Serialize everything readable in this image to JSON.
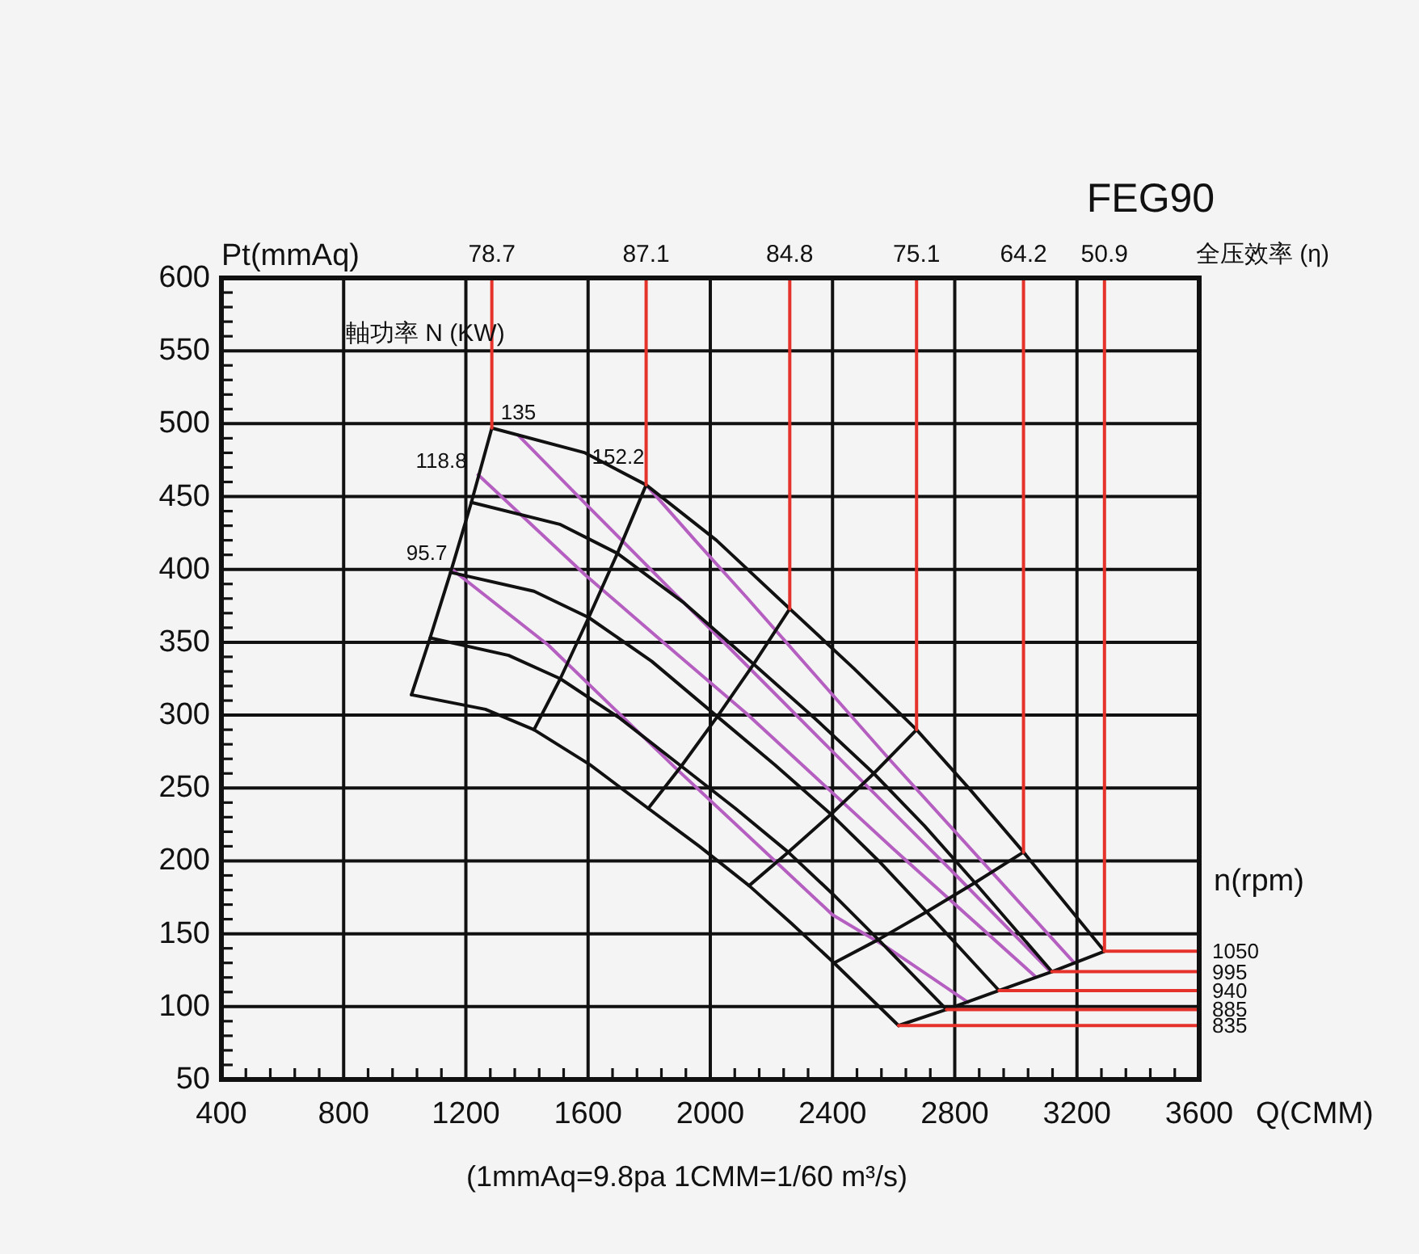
{
  "chart_data": {
    "type": "line",
    "title": "FEG90",
    "xlabel": "Q(CMM)",
    "ylabel": "Pt(mmAq)",
    "xlim": [
      400,
      3600
    ],
    "xticks": [
      400,
      {
        "value": 480,
        "label": null
      },
      {
        "value": 560,
        "label": null
      },
      {
        "value": 640,
        "label": null
      },
      {
        "value": 720,
        "label": null
      },
      800,
      {
        "value": 880,
        "label": null
      },
      {
        "value": 960,
        "label": null
      },
      {
        "value": 1040,
        "label": null
      },
      {
        "value": 1120,
        "label": null
      },
      1200,
      {
        "value": 1280,
        "label": null
      },
      {
        "value": 1360,
        "label": null
      },
      {
        "value": 1440,
        "label": null
      },
      {
        "value": 1520,
        "label": null
      },
      1600,
      {
        "value": 1680,
        "label": null
      },
      {
        "value": 1760,
        "label": null
      },
      {
        "value": 1840,
        "label": null
      },
      {
        "value": 1920,
        "label": null
      },
      2000,
      {
        "value": 2080,
        "label": null
      },
      {
        "value": 2160,
        "label": null
      },
      {
        "value": 2240,
        "label": null
      },
      {
        "value": 2320,
        "label": null
      },
      2400,
      {
        "value": 2480,
        "label": null
      },
      {
        "value": 2560,
        "label": null
      },
      {
        "value": 2640,
        "label": null
      },
      {
        "value": 2720,
        "label": null
      },
      2800,
      {
        "value": 2880,
        "label": null
      },
      {
        "value": 2960,
        "label": null
      },
      {
        "value": 3040,
        "label": null
      },
      {
        "value": 3120,
        "label": null
      },
      3200,
      {
        "value": 3280,
        "label": null
      },
      {
        "value": 3360,
        "label": null
      },
      {
        "value": 3440,
        "label": null
      },
      {
        "value": 3520,
        "label": null
      },
      3600
    ],
    "ylim": [
      50,
      600
    ],
    "yticks": [
      50,
      {
        "value": 60,
        "label": null
      },
      {
        "value": 70,
        "label": null
      },
      {
        "value": 80,
        "label": null
      },
      {
        "value": 90,
        "label": null
      },
      100,
      {
        "value": 110,
        "label": null
      },
      {
        "value": 120,
        "label": null
      },
      {
        "value": 130,
        "label": null
      },
      {
        "value": 140,
        "label": null
      },
      150,
      {
        "value": 160,
        "label": null
      },
      {
        "value": 170,
        "label": null
      },
      {
        "value": 180,
        "label": null
      },
      {
        "value": 190,
        "label": null
      },
      200,
      {
        "value": 210,
        "label": null
      },
      {
        "value": 220,
        "label": null
      },
      {
        "value": 230,
        "label": null
      },
      {
        "value": 240,
        "label": null
      },
      250,
      {
        "value": 260,
        "label": null
      },
      {
        "value": 270,
        "label": null
      },
      {
        "value": 280,
        "label": null
      },
      {
        "value": 290,
        "label": null
      },
      300,
      {
        "value": 310,
        "label": null
      },
      {
        "value": 320,
        "label": null
      },
      {
        "value": 330,
        "label": null
      },
      {
        "value": 340,
        "label": null
      },
      350,
      {
        "value": 360,
        "label": null
      },
      {
        "value": 370,
        "label": null
      },
      {
        "value": 380,
        "label": null
      },
      {
        "value": 390,
        "label": null
      },
      400,
      {
        "value": 410,
        "label": null
      },
      {
        "value": 420,
        "label": null
      },
      {
        "value": 430,
        "label": null
      },
      {
        "value": 440,
        "label": null
      },
      450,
      {
        "value": 460,
        "label": null
      },
      {
        "value": 470,
        "label": null
      },
      {
        "value": 480,
        "label": null
      },
      {
        "value": 490,
        "label": null
      },
      500,
      {
        "value": 510,
        "label": null
      },
      {
        "value": 520,
        "label": null
      },
      {
        "value": 530,
        "label": null
      },
      {
        "value": 540,
        "label": null
      },
      550,
      {
        "value": 560,
        "label": null
      },
      {
        "value": 570,
        "label": null
      },
      {
        "value": 580,
        "label": null
      },
      {
        "value": 590,
        "label": null
      },
      600
    ],
    "grid": true,
    "annotations": [
      "軸功率 N (KW)",
      {
        "text": "135",
        "x": 1372,
        "y": 492
      },
      {
        "text": "152.2",
        "x": 1790,
        "y": 458
      },
      {
        "text": "118.8",
        "x": 1240,
        "y": 465
      },
      {
        "text": "95.7",
        "x": 1155,
        "y": 400
      },
      {
        "text": "78.7",
        "x": 1285,
        "y": 600
      },
      {
        "text": "87.1",
        "x": 1790,
        "y": 600
      },
      {
        "text": "84.8",
        "x": 2260,
        "y": 600
      },
      {
        "text": "75.1",
        "x": 2675,
        "y": 600
      },
      {
        "text": "64.2",
        "x": 3025,
        "y": 600
      },
      {
        "text": "50.9",
        "x": 3290,
        "y": 600
      },
      "全压效率 (η)",
      {
        "text": "1050",
        "x": 3600,
        "y": 138
      },
      {
        "text": "995",
        "x": 3600,
        "y": 124
      },
      {
        "text": "940",
        "x": 3600,
        "y": 111
      },
      {
        "text": "885",
        "x": 3600,
        "y": 98
      },
      {
        "text": "835",
        "x": 3600,
        "y": 87
      },
      "n(rpm)",
      "(1mmAq=9.8pa 1CMM=1/60 m³/s)"
    ],
    "series": [
      {
        "color": "#b55fc1",
        "x": [
          1155,
          1470,
          1890,
          2400,
          2576,
          2843
        ],
        "values": [
          400,
          348,
          263,
          163,
          141,
          103
        ]
      },
      {
        "color": "#b55fc1",
        "x": [
          1240,
          1592,
          1890,
          2119,
          2600,
          3062
        ],
        "values": [
          465,
          396,
          342,
          301,
          208,
          121
        ]
      },
      {
        "color": "#b55fc1",
        "x": [
          1372,
          1592,
          1890,
          2049,
          2400,
          2786,
          3113
        ],
        "values": [
          492,
          445,
          382,
          349,
          275,
          194,
          124
        ]
      },
      {
        "color": "#b55fc1",
        "x": [
          1790,
          1950,
          2118,
          2585,
          3191
        ],
        "values": [
          458,
          420,
          381,
          270,
          130
        ]
      },
      {
        "color": "#111111",
        "x": [
          1285,
          1590,
          1790,
          2020,
          2260,
          2470,
          2675,
          2850,
          3025,
          3290
        ],
        "values": [
          497,
          480,
          458,
          420,
          373,
          332,
          290,
          249,
          206,
          138
        ]
      },
      {
        "color": "#111111",
        "x": [
          1218,
          1507,
          1696,
          1914,
          2142,
          2341,
          2535,
          2701,
          2866,
          3118
        ],
        "values": [
          446,
          431,
          411,
          377,
          335,
          298,
          260,
          224,
          185,
          124
        ]
      },
      {
        "color": "#111111",
        "x": [
          1150,
          1423,
          1602,
          1808,
          2023,
          2211,
          2395,
          2551,
          2708,
          2945
        ],
        "values": [
          398,
          385,
          367,
          337,
          299,
          266,
          232,
          200,
          165,
          111
        ]
      },
      {
        "color": "#111111",
        "x": [
          1083,
          1340,
          1509,
          1703,
          1905,
          2082,
          2255,
          2402,
          2550,
          2773
        ],
        "values": [
          353,
          341,
          325,
          298,
          265,
          236,
          206,
          177,
          146,
          98
        ]
      },
      {
        "color": "#111111",
        "x": [
          1022,
          1264,
          1423,
          1606,
          1797,
          1964,
          2127,
          2266,
          2405,
          2616
        ],
        "values": [
          314,
          304,
          290,
          266,
          236,
          210,
          183,
          157,
          130,
          87
        ]
      },
      {
        "color": "#111111",
        "x": [
          1285,
          1218,
          1150,
          1083,
          1022
        ],
        "values": [
          497,
          446,
          398,
          353,
          314
        ]
      },
      {
        "color": "#111111",
        "x": [
          1790,
          1696,
          1602,
          1509,
          1423
        ],
        "values": [
          458,
          411,
          367,
          325,
          290
        ]
      },
      {
        "color": "#111111",
        "x": [
          2260,
          2142,
          2023,
          1905,
          1797
        ],
        "values": [
          373,
          335,
          299,
          265,
          236
        ]
      },
      {
        "color": "#111111",
        "x": [
          2675,
          2535,
          2395,
          2255,
          2127
        ],
        "values": [
          290,
          260,
          232,
          206,
          183
        ]
      },
      {
        "color": "#111111",
        "x": [
          3025,
          2866,
          2708,
          2550,
          2405
        ],
        "values": [
          206,
          185,
          165,
          146,
          130
        ]
      },
      {
        "color": "#111111",
        "x": [
          3290,
          3118,
          2945,
          2773,
          2616
        ],
        "values": [
          138,
          124,
          111,
          98,
          87
        ]
      },
      {
        "color": "#e5322a",
        "x": [
          1285,
          1285
        ],
        "values": [
          497,
          600
        ]
      },
      {
        "color": "#e5322a",
        "x": [
          1790,
          1790
        ],
        "values": [
          458,
          600
        ]
      },
      {
        "color": "#e5322a",
        "x": [
          2260,
          2260
        ],
        "values": [
          373,
          600
        ]
      },
      {
        "color": "#e5322a",
        "x": [
          2675,
          2675
        ],
        "values": [
          290,
          600
        ]
      },
      {
        "color": "#e5322a",
        "x": [
          3025,
          3025
        ],
        "values": [
          206,
          600
        ]
      },
      {
        "color": "#e5322a",
        "x": [
          3290,
          3290
        ],
        "values": [
          138,
          600
        ]
      },
      {
        "color": "#e5322a",
        "x": [
          3290,
          3600
        ],
        "values": [
          138,
          138
        ]
      },
      {
        "color": "#e5322a",
        "x": [
          3118,
          3600
        ],
        "values": [
          124,
          124
        ]
      },
      {
        "color": "#e5322a",
        "x": [
          2945,
          3600
        ],
        "values": [
          111,
          111
        ]
      },
      {
        "color": "#e5322a",
        "x": [
          2773,
          3600
        ],
        "values": [
          98,
          98
        ]
      },
      {
        "color": "#e5322a",
        "x": [
          2616,
          3600
        ],
        "values": [
          87,
          87
        ]
      }
    ]
  }
}
